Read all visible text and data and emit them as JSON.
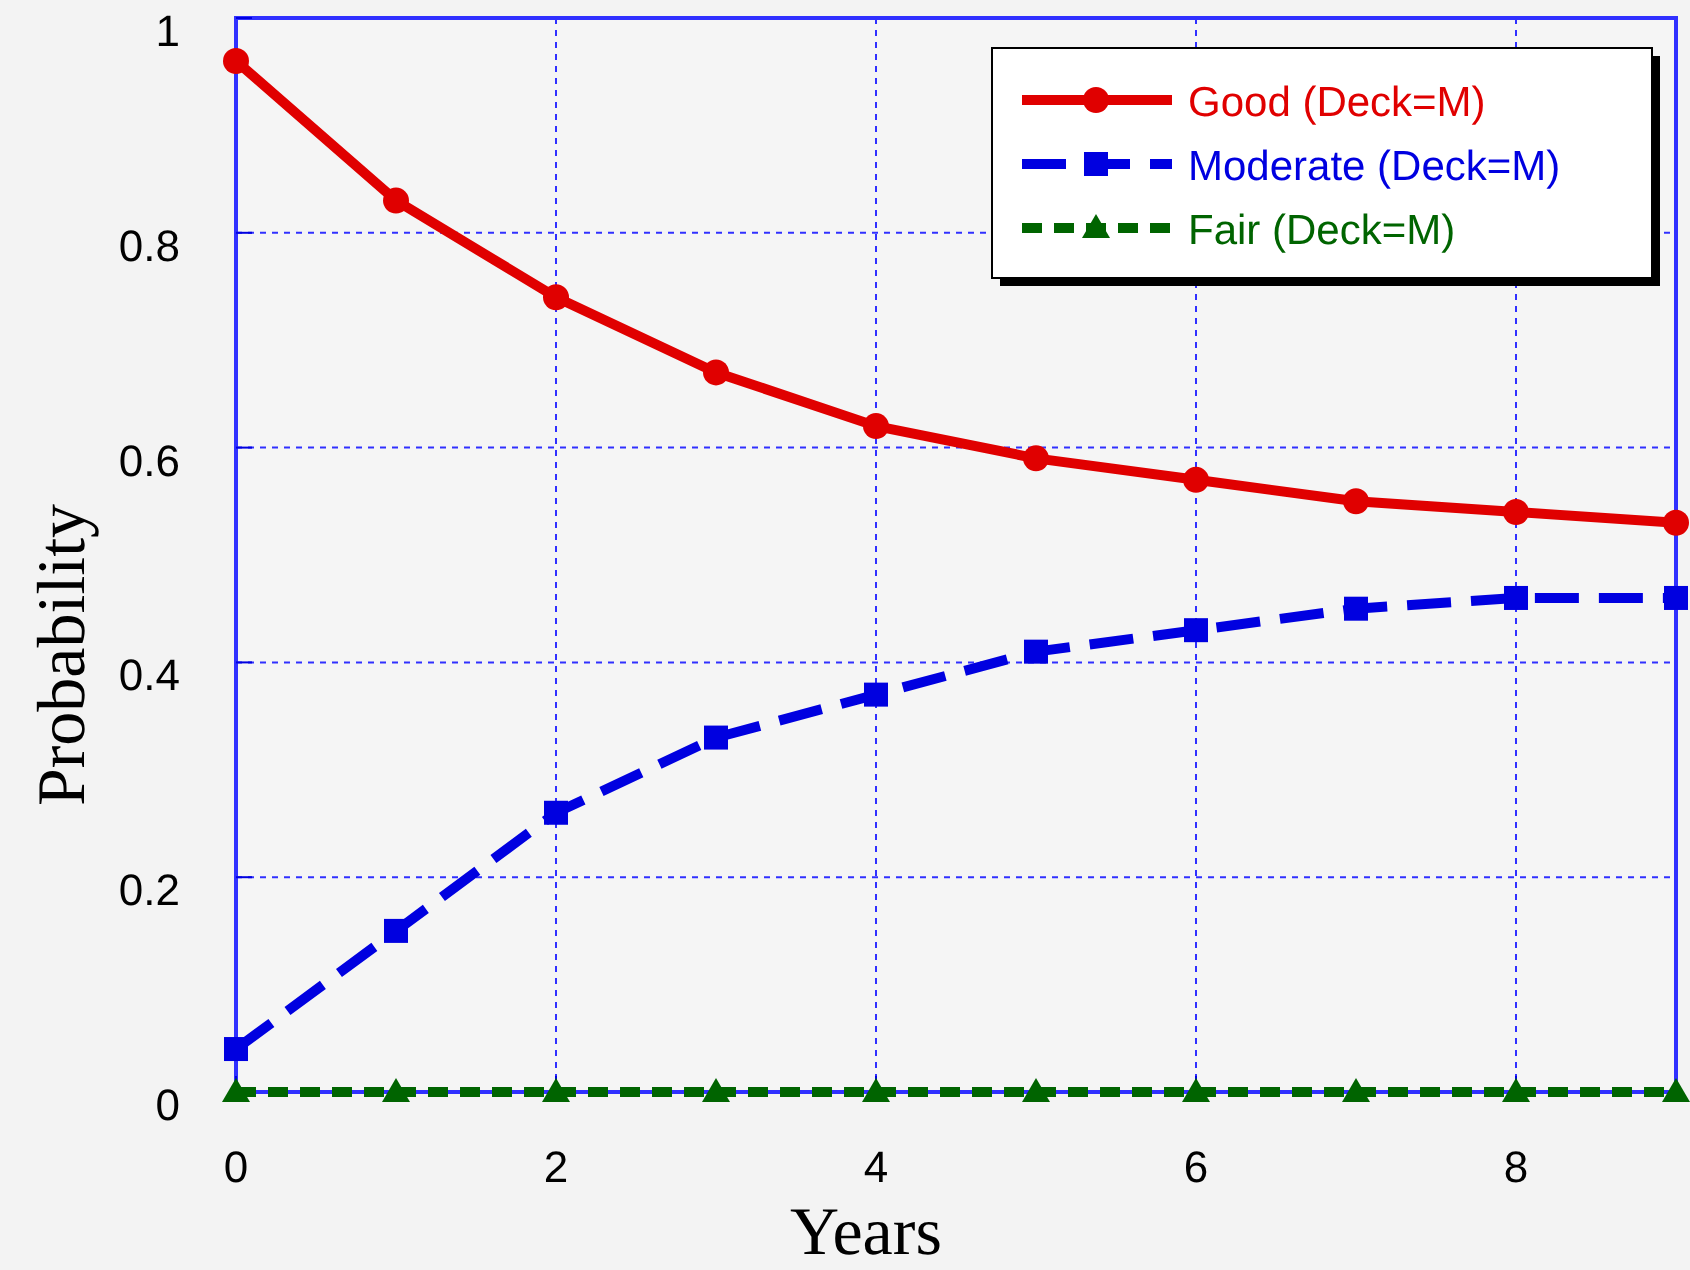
{
  "chart_data": {
    "type": "line",
    "xlabel": "Years",
    "ylabel": "Probability",
    "x": [
      0,
      1,
      2,
      3,
      4,
      5,
      6,
      7,
      8,
      9
    ],
    "xlim": [
      0,
      9
    ],
    "xticks": [
      0,
      2,
      4,
      6,
      8
    ],
    "ylim": [
      0,
      1
    ],
    "yticks": [
      0,
      0.2,
      0.4,
      0.6,
      0.8,
      1
    ],
    "grid": true,
    "legend": "top right",
    "series": [
      {
        "name": "Good (Deck=M)",
        "color": "#e00000",
        "marker": "circle",
        "line_style": "solid",
        "values": [
          0.96,
          0.83,
          0.74,
          0.67,
          0.62,
          0.59,
          0.57,
          0.55,
          0.54,
          0.53
        ]
      },
      {
        "name": "Moderate (Deck=M)",
        "color": "#0000e0",
        "marker": "square",
        "line_style": "dashed",
        "values": [
          0.04,
          0.15,
          0.26,
          0.33,
          0.37,
          0.41,
          0.43,
          0.45,
          0.46,
          0.46
        ]
      },
      {
        "name": "Fair (Deck=M)",
        "color": "#006400",
        "marker": "triangle",
        "line_style": "dotted",
        "values": [
          0,
          0,
          0,
          0,
          0,
          0,
          0,
          0,
          0,
          0
        ]
      }
    ]
  }
}
